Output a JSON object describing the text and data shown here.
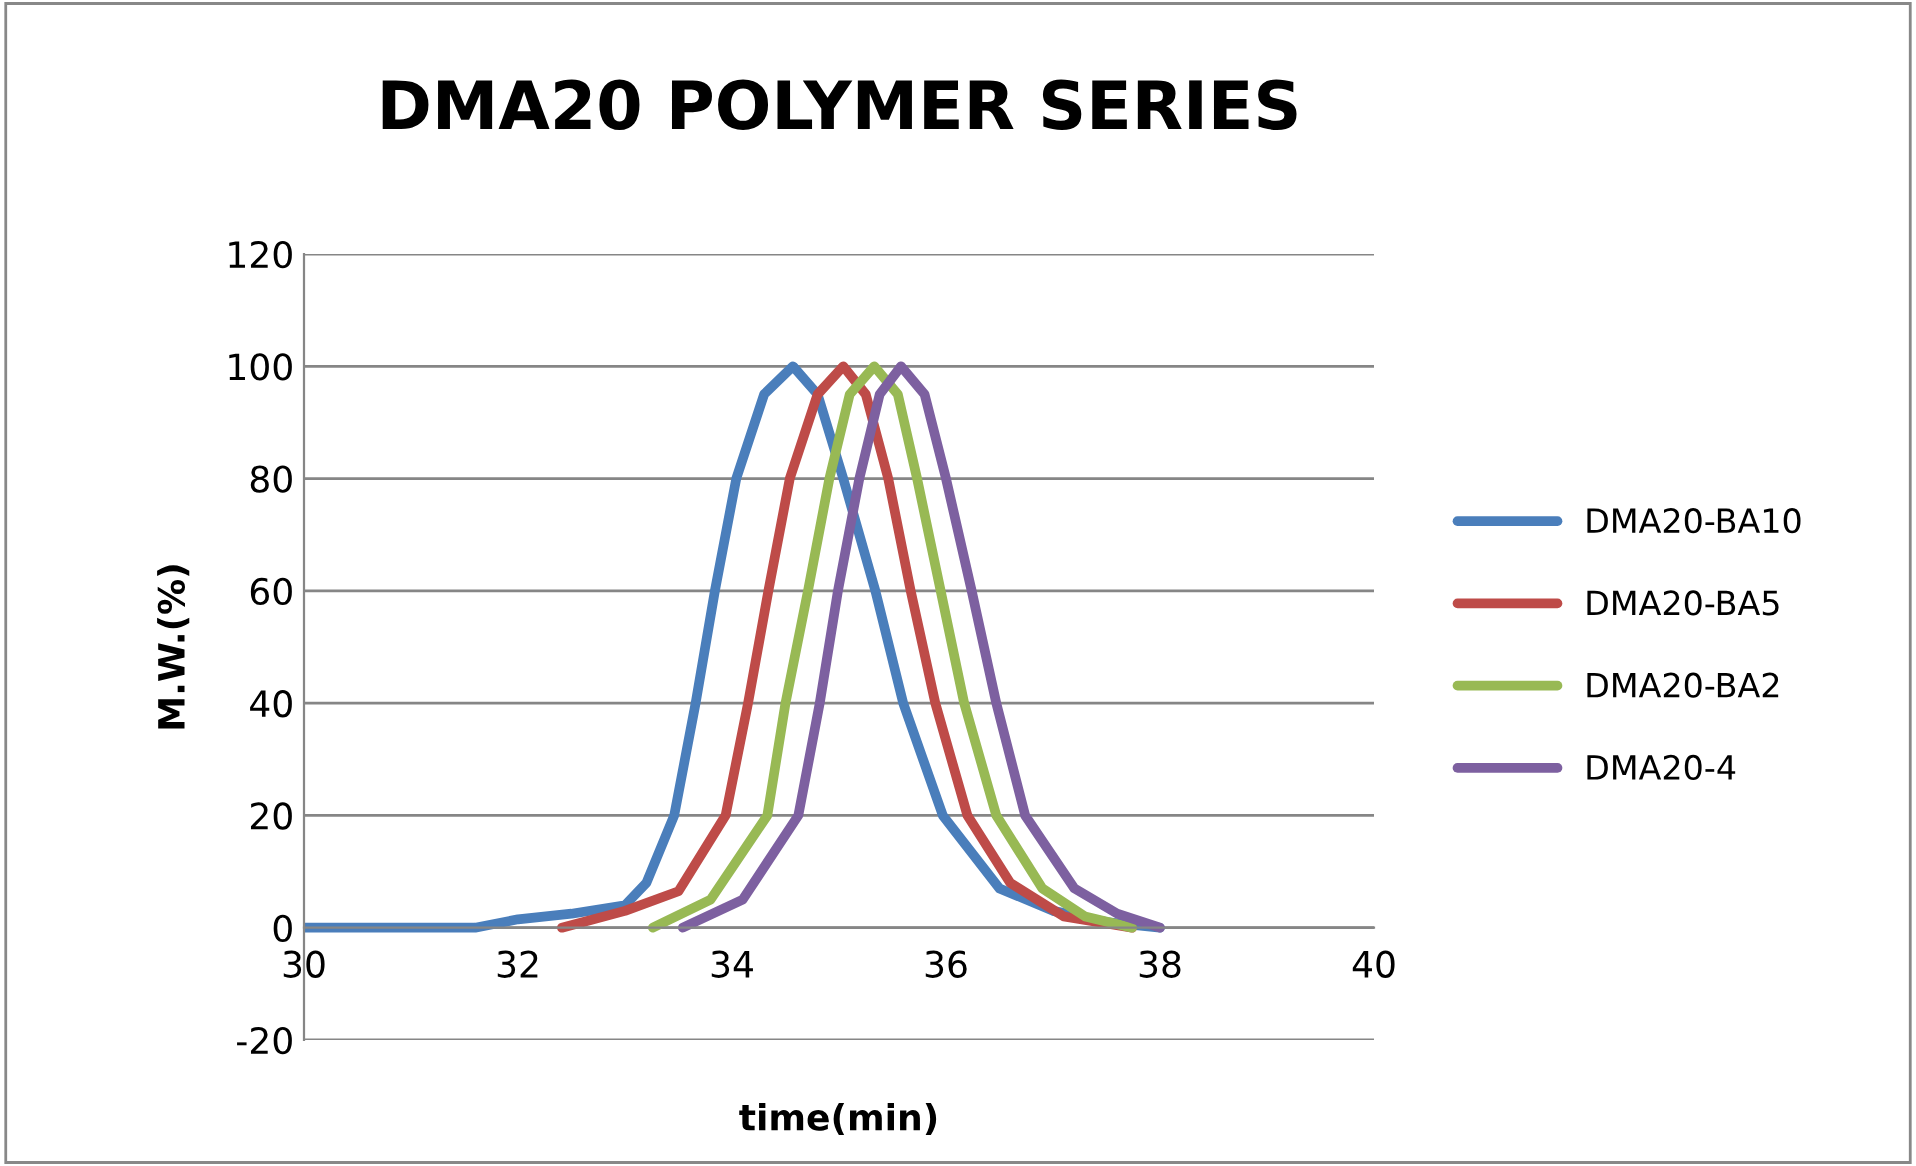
{
  "chart_data": {
    "type": "line",
    "title": "DMA20 POLYMER SERIES",
    "xlabel": "time(min)",
    "ylabel": "M.W.(%)",
    "xlim": [
      30,
      40
    ],
    "xticks": [
      30,
      32,
      34,
      36,
      38,
      40
    ],
    "ylim": [
      -20,
      120
    ],
    "yticks": [
      -20,
      0,
      20,
      40,
      60,
      80,
      100,
      120
    ],
    "grid": "y",
    "legend": "right",
    "marker": "none",
    "line_style": "solid",
    "series": [
      {
        "name": "DMA20-BA10",
        "color": "#4a7ebb",
        "x": [
          30,
          31.6,
          32,
          32.5,
          33,
          33.2,
          33.46,
          33.66,
          33.84,
          34.04,
          34.3,
          34.57,
          34.8,
          35.04,
          35.34,
          35.6,
          35.97,
          36.5,
          37,
          37.5,
          38
        ],
        "values": [
          0,
          0,
          1.5,
          2.5,
          4,
          8,
          20,
          40,
          60,
          80,
          95,
          100,
          95,
          80,
          60,
          40,
          20,
          7,
          3,
          1,
          0
        ]
      },
      {
        "name": "DMA20-BA5",
        "color": "#be4b48",
        "x": [
          32.41,
          33,
          33.5,
          33.94,
          34.15,
          34.34,
          34.54,
          34.8,
          35.04,
          35.25,
          35.46,
          35.67,
          35.9,
          36.2,
          36.6,
          37.1,
          37.74
        ],
        "values": [
          0,
          3,
          6.5,
          20,
          40,
          60,
          80,
          95,
          100,
          95,
          80,
          60,
          40,
          20,
          8,
          2,
          0
        ]
      },
      {
        "name": "DMA20-BA2",
        "color": "#98b954",
        "x": [
          33.26,
          33.8,
          34.33,
          34.5,
          34.71,
          34.91,
          35.1,
          35.33,
          35.55,
          35.73,
          35.95,
          36.17,
          36.47,
          36.9,
          37.3,
          37.74
        ],
        "values": [
          0,
          5,
          20,
          40,
          60,
          80,
          95,
          100,
          95,
          80,
          60,
          40,
          20,
          7,
          2,
          0
        ]
      },
      {
        "name": "DMA20-4",
        "color": "#7d60a0",
        "x": [
          33.54,
          34.1,
          34.62,
          34.82,
          34.99,
          35.19,
          35.38,
          35.58,
          35.8,
          36.0,
          36.24,
          36.47,
          36.74,
          37.2,
          37.6,
          38.0
        ],
        "values": [
          0,
          5,
          20,
          40,
          60,
          80,
          95,
          100,
          95,
          80,
          60,
          40,
          20,
          7,
          2.5,
          0
        ]
      }
    ]
  }
}
